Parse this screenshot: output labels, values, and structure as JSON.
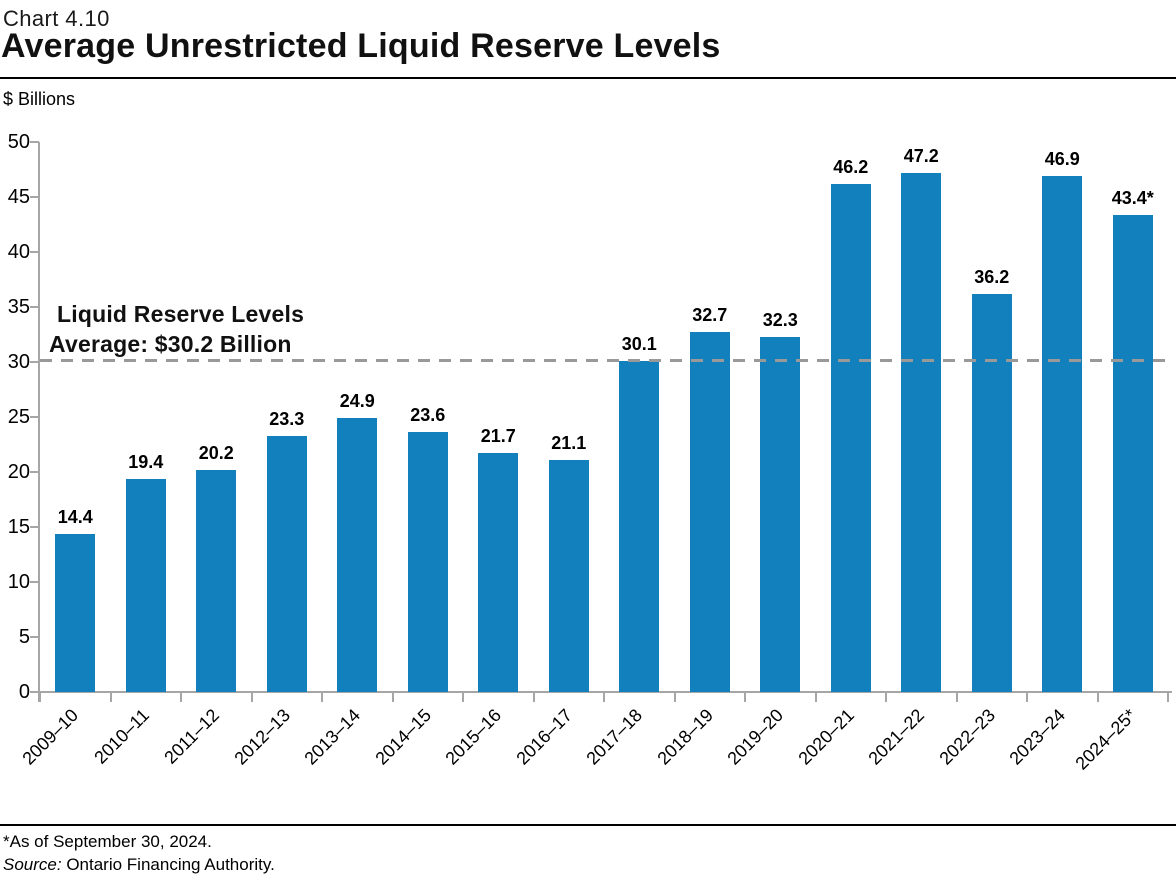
{
  "header": {
    "chart_number": "Chart 4.10",
    "title": "Average Unrestricted Liquid Reserve Levels",
    "units_label": "$ Billions"
  },
  "chart_data": {
    "type": "bar",
    "title": "Average Unrestricted Liquid Reserve Levels",
    "ylabel": "$ Billions",
    "xlabel": "",
    "categories": [
      "2009–10",
      "2010–11",
      "2011–12",
      "2012–13",
      "2013–14",
      "2014–15",
      "2015–16",
      "2016–17",
      "2017–18",
      "2018–19",
      "2019–20",
      "2020–21",
      "2021–22",
      "2022–23",
      "2023–24",
      "2024–25*"
    ],
    "values": [
      14.4,
      19.4,
      20.2,
      23.3,
      24.9,
      23.6,
      21.7,
      21.1,
      30.1,
      32.7,
      32.3,
      46.2,
      47.2,
      36.2,
      46.9,
      43.4
    ],
    "value_labels": [
      "14.4",
      "19.4",
      "20.2",
      "23.3",
      "24.9",
      "23.6",
      "21.7",
      "21.1",
      "30.1",
      "32.7",
      "32.3",
      "46.2",
      "47.2",
      "36.2",
      "46.9",
      "43.4*"
    ],
    "ylim": [
      0,
      50
    ],
    "ytick_interval": 5,
    "grid": false,
    "legend": "none",
    "bar_color": "#1380BE",
    "axis_color": "#a6a6a6",
    "average_line": {
      "value": 30.2,
      "style": "dashed",
      "color": "#999999",
      "label_line1": "Liquid Reserve Levels",
      "label_line2": "Average: $30.2 Billion"
    }
  },
  "footer": {
    "footnote": "*As of September 30, 2024.",
    "source_label": "Source:",
    "source_text": " Ontario Financing Authority."
  }
}
